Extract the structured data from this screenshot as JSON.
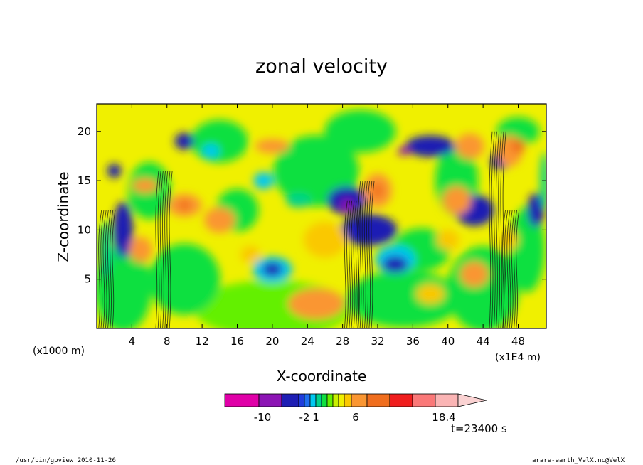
{
  "chart_data": {
    "type": "heatmap",
    "title": "zonal velocity",
    "xlabel": "X-coordinate",
    "ylabel": "Z-coordinate",
    "x_unit": "(x1E4 m)",
    "y_unit": "(x1000 m)",
    "x_ticks": [
      "4",
      "8",
      "12",
      "16",
      "20",
      "24",
      "28",
      "32",
      "36",
      "40",
      "44",
      "48"
    ],
    "y_ticks": [
      "5",
      "10",
      "15",
      "20"
    ],
    "xlim": [
      0,
      51.2
    ],
    "ylim": [
      0,
      22.8
    ],
    "colorbar": {
      "tick_labels": [
        "-10",
        "-2",
        "1",
        "6",
        "18.4"
      ],
      "colors": [
        "#e000a8",
        "#8c14b4",
        "#1e1eb4",
        "#1e3cdc",
        "#1e6ef0",
        "#00c8f0",
        "#00d28c",
        "#10e040",
        "#64f000",
        "#c8f000",
        "#f0f000",
        "#fac800",
        "#fa9632",
        "#f06e1e",
        "#f01e1e",
        "#fa7878",
        "#fab4b4",
        "#fad2d2"
      ]
    },
    "time_label": "t=23400 s"
  },
  "footer": {
    "left": "/usr/bin/gpview   2010-11-26",
    "right": "arare-earth_VelX.nc@VelX"
  }
}
